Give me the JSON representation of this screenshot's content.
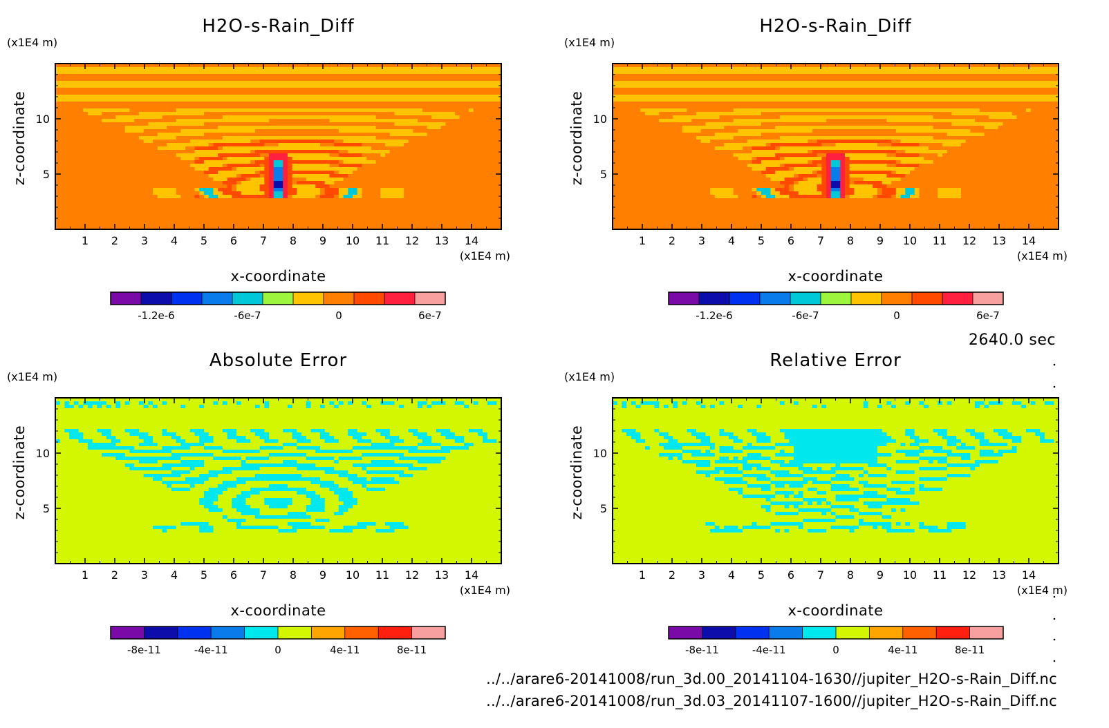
{
  "time_label": "2640.0 sec",
  "footer": [
    "../../arare6-20141008/run_3d.00_20141104-1630//jupiter_H2O-s-Rain_Diff.nc",
    "../../arare6-20141008/run_3d.03_20141107-1600//jupiter_H2O-s-Rain_Diff.nc"
  ],
  "chart_data": [
    {
      "type": "heatmap",
      "title": "H2O-s-Rain_Diff",
      "xlabel": "x-coordinate",
      "ylabel": "z-coordinate",
      "x_unit": "(x1E4 m)",
      "y_unit": "(x1E4 m)",
      "xlim": [
        0,
        15
      ],
      "ylim": [
        0,
        15
      ],
      "xticks": [
        "1",
        "2",
        "3",
        "4",
        "5",
        "6",
        "7",
        "8",
        "9",
        "10",
        "11",
        "12",
        "13",
        "14"
      ],
      "yticks": [
        "5",
        "10"
      ],
      "colorbar": {
        "levels": 11,
        "colors": [
          "#7a0aa8",
          "#0d0dab",
          "#0031f0",
          "#0a7bea",
          "#00c8d8",
          "#9ef53e",
          "#ffc400",
          "#ff8000",
          "#ff4a00",
          "#ff2040",
          "#f8a0a0"
        ],
        "tick_labels": [
          "-1.2e-6",
          "-6e-7",
          "0",
          "6e-7"
        ],
        "tick_positions": [
          1.5,
          4.5,
          7.5,
          10.5
        ]
      },
      "field": "rain_diff"
    },
    {
      "type": "heatmap",
      "title": "H2O-s-Rain_Diff",
      "xlabel": "x-coordinate",
      "ylabel": "z-coordinate",
      "x_unit": "(x1E4 m)",
      "y_unit": "(x1E4 m)",
      "xlim": [
        0,
        15
      ],
      "ylim": [
        0,
        15
      ],
      "xticks": [
        "1",
        "2",
        "3",
        "4",
        "5",
        "6",
        "7",
        "8",
        "9",
        "10",
        "11",
        "12",
        "13",
        "14"
      ],
      "yticks": [
        "5",
        "10"
      ],
      "colorbar": {
        "levels": 11,
        "colors": [
          "#7a0aa8",
          "#0d0dab",
          "#0031f0",
          "#0a7bea",
          "#00c8d8",
          "#9ef53e",
          "#ffc400",
          "#ff8000",
          "#ff4a00",
          "#ff2040",
          "#f8a0a0"
        ],
        "tick_labels": [
          "-1.2e-6",
          "-6e-7",
          "0",
          "6e-7"
        ],
        "tick_positions": [
          1.5,
          4.5,
          7.5,
          10.5
        ]
      },
      "field": "rain_diff"
    },
    {
      "type": "heatmap",
      "title": "Absolute Error",
      "xlabel": "x-coordinate",
      "ylabel": "z-coordinate",
      "x_unit": "(x1E4 m)",
      "y_unit": "(x1E4 m)",
      "xlim": [
        0,
        15
      ],
      "ylim": [
        0,
        15
      ],
      "xticks": [
        "1",
        "2",
        "3",
        "4",
        "5",
        "6",
        "7",
        "8",
        "9",
        "10",
        "11",
        "12",
        "13",
        "14"
      ],
      "yticks": [
        "5",
        "10"
      ],
      "colorbar": {
        "levels": 10,
        "colors": [
          "#7a0aa8",
          "#0d0dab",
          "#0031f0",
          "#0a7bea",
          "#00e8ee",
          "#d2f700",
          "#ffa500",
          "#ff6000",
          "#ff2010",
          "#f8a0a0"
        ],
        "tick_labels": [
          "-8e-11",
          "-4e-11",
          "0",
          "4e-11",
          "8e-11"
        ],
        "tick_positions": [
          1,
          3,
          5,
          7,
          9
        ]
      },
      "field": "abs_err"
    },
    {
      "type": "heatmap",
      "title": "Relative Error",
      "xlabel": "x-coordinate",
      "ylabel": "z-coordinate",
      "x_unit": "(x1E4 m)",
      "y_unit": "(x1E4 m)",
      "xlim": [
        0,
        15
      ],
      "ylim": [
        0,
        15
      ],
      "xticks": [
        "1",
        "2",
        "3",
        "4",
        "5",
        "6",
        "7",
        "8",
        "9",
        "10",
        "11",
        "12",
        "13",
        "14"
      ],
      "yticks": [
        "5",
        "10"
      ],
      "colorbar": {
        "levels": 10,
        "colors": [
          "#7a0aa8",
          "#0d0dab",
          "#0031f0",
          "#0a7bea",
          "#00e8ee",
          "#d2f700",
          "#ffa500",
          "#ff6000",
          "#ff2010",
          "#f8a0a0"
        ],
        "tick_labels": [
          "-8e-11",
          "-4e-11",
          "0",
          "4e-11",
          "8e-11"
        ],
        "tick_positions": [
          1,
          3,
          5,
          7,
          9
        ]
      },
      "field": "rel_err"
    }
  ]
}
